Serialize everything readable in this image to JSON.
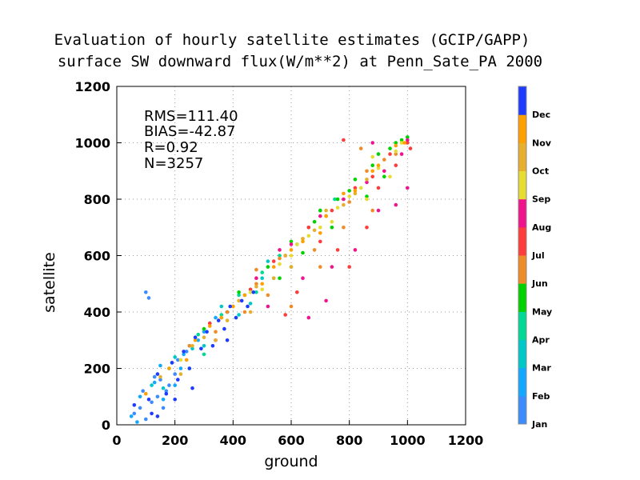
{
  "chart_data": {
    "type": "scatter",
    "title": "Evaluation of hourly satellite estimates (GCIP/GAPP)",
    "subtitle": "surface SW downward flux(W/m**2) at Penn_Sate_PA 2000",
    "xlabel": "ground",
    "ylabel": "satellite",
    "xlim": [
      0,
      1200
    ],
    "ylim": [
      0,
      1200
    ],
    "xticks": [
      "0",
      "200",
      "400",
      "600",
      "800",
      "1000",
      "1200"
    ],
    "yticks": [
      "0",
      "200",
      "400",
      "600",
      "800",
      "1000",
      "1200"
    ],
    "grid": true,
    "stats": [
      "RMS=111.40",
      "BIAS=-42.87",
      "R=0.92",
      "N=3257"
    ],
    "legend_placement": "right colorbar",
    "colorbar": [
      {
        "label": "Jan",
        "color": "#3a8cff"
      },
      {
        "label": "Feb",
        "color": "#12a8ff"
      },
      {
        "label": "Mar",
        "color": "#00c8c8"
      },
      {
        "label": "Apr",
        "color": "#00d896"
      },
      {
        "label": "May",
        "color": "#00d200"
      },
      {
        "label": "Jun",
        "color": "#f08c28"
      },
      {
        "label": "Jul",
        "color": "#ff3c3c"
      },
      {
        "label": "Aug",
        "color": "#f0148c"
      },
      {
        "label": "Sep",
        "color": "#e6dc32"
      },
      {
        "label": "Oct",
        "color": "#e6af2d"
      },
      {
        "label": "Nov",
        "color": "#ffa000"
      },
      {
        "label": "Dec",
        "color": "#1e3cff"
      }
    ],
    "series": [
      {
        "values": [
          [
            60,
            40
          ],
          [
            90,
            120
          ],
          [
            120,
            80
          ],
          [
            150,
            160
          ],
          [
            180,
            140
          ],
          [
            100,
            20
          ],
          [
            140,
            100
          ],
          [
            200,
            180
          ],
          [
            80,
            60
          ],
          [
            160,
            60
          ],
          [
            130,
            170
          ],
          [
            210,
            230
          ],
          [
            170,
            120
          ],
          [
            240,
            260
          ],
          [
            110,
            450
          ],
          [
            100,
            470
          ]
        ]
      },
      {
        "values": [
          [
            50,
            30
          ],
          [
            80,
            100
          ],
          [
            130,
            150
          ],
          [
            160,
            90
          ],
          [
            190,
            220
          ],
          [
            220,
            200
          ],
          [
            250,
            280
          ],
          [
            280,
            300
          ],
          [
            70,
            10
          ],
          [
            150,
            210
          ],
          [
            200,
            140
          ],
          [
            300,
            330
          ],
          [
            340,
            380
          ],
          [
            230,
            250
          ]
        ]
      },
      {
        "values": [
          [
            120,
            140
          ],
          [
            200,
            240
          ],
          [
            260,
            270
          ],
          [
            320,
            360
          ],
          [
            380,
            400
          ],
          [
            420,
            390
          ],
          [
            300,
            280
          ],
          [
            360,
            420
          ],
          [
            440,
            460
          ],
          [
            500,
            520
          ],
          [
            250,
            200
          ],
          [
            160,
            130
          ],
          [
            460,
            430
          ],
          [
            520,
            580
          ]
        ]
      },
      {
        "values": [
          [
            180,
            200
          ],
          [
            280,
            320
          ],
          [
            360,
            390
          ],
          [
            420,
            460
          ],
          [
            500,
            540
          ],
          [
            560,
            600
          ],
          [
            620,
            640
          ],
          [
            660,
            700
          ],
          [
            300,
            250
          ],
          [
            480,
            470
          ],
          [
            540,
            520
          ],
          [
            700,
            760
          ],
          [
            600,
            560
          ],
          [
            750,
            800
          ]
        ]
      },
      {
        "values": [
          [
            300,
            340
          ],
          [
            420,
            470
          ],
          [
            520,
            560
          ],
          [
            600,
            650
          ],
          [
            680,
            720
          ],
          [
            760,
            800
          ],
          [
            820,
            870
          ],
          [
            880,
            920
          ],
          [
            940,
            980
          ],
          [
            960,
            1000
          ],
          [
            1000,
            1020
          ],
          [
            980,
            1010
          ],
          [
            860,
            810
          ],
          [
            740,
            700
          ],
          [
            640,
            610
          ],
          [
            900,
            960
          ],
          [
            560,
            520
          ],
          [
            800,
            830
          ],
          [
            700,
            760
          ],
          [
            920,
            880
          ]
        ]
      },
      {
        "values": [
          [
            250,
            280
          ],
          [
            380,
            400
          ],
          [
            480,
            500
          ],
          [
            560,
            590
          ],
          [
            640,
            660
          ],
          [
            720,
            740
          ],
          [
            800,
            790
          ],
          [
            860,
            900
          ],
          [
            920,
            940
          ],
          [
            960,
            960
          ],
          [
            520,
            460
          ],
          [
            680,
            620
          ],
          [
            780,
            700
          ],
          [
            600,
            420
          ],
          [
            700,
            560
          ],
          [
            880,
            760
          ],
          [
            840,
            980
          ],
          [
            480,
            550
          ],
          [
            340,
            330
          ],
          [
            440,
            400
          ]
        ]
      },
      {
        "values": [
          [
            320,
            360
          ],
          [
            460,
            480
          ],
          [
            580,
            600
          ],
          [
            660,
            700
          ],
          [
            740,
            760
          ],
          [
            820,
            840
          ],
          [
            880,
            880
          ],
          [
            940,
            960
          ],
          [
            1000,
            1000
          ],
          [
            760,
            620
          ],
          [
            860,
            700
          ],
          [
            620,
            470
          ],
          [
            900,
            840
          ],
          [
            700,
            650
          ],
          [
            540,
            580
          ],
          [
            960,
            920
          ],
          [
            780,
            1010
          ],
          [
            580,
            390
          ],
          [
            800,
            560
          ],
          [
            1010,
            980
          ]
        ]
      },
      {
        "values": [
          [
            340,
            300
          ],
          [
            480,
            520
          ],
          [
            600,
            640
          ],
          [
            700,
            740
          ],
          [
            780,
            800
          ],
          [
            860,
            860
          ],
          [
            920,
            900
          ],
          [
            980,
            960
          ],
          [
            820,
            620
          ],
          [
            900,
            760
          ],
          [
            640,
            520
          ],
          [
            740,
            560
          ],
          [
            560,
            620
          ],
          [
            880,
            1000
          ],
          [
            1000,
            840
          ],
          [
            720,
            440
          ],
          [
            660,
            380
          ],
          [
            960,
            780
          ],
          [
            520,
            420
          ],
          [
            1000,
            1010
          ]
        ]
      },
      {
        "values": [
          [
            220,
            230
          ],
          [
            360,
            380
          ],
          [
            460,
            470
          ],
          [
            560,
            570
          ],
          [
            660,
            670
          ],
          [
            760,
            770
          ],
          [
            840,
            840
          ],
          [
            900,
            910
          ],
          [
            960,
            970
          ],
          [
            600,
            600
          ],
          [
            700,
            700
          ],
          [
            800,
            810
          ],
          [
            500,
            480
          ],
          [
            400,
            420
          ],
          [
            940,
            880
          ],
          [
            860,
            800
          ],
          [
            740,
            720
          ],
          [
            620,
            640
          ],
          [
            880,
            950
          ],
          [
            980,
            1000
          ]
        ]
      },
      {
        "values": [
          [
            150,
            170
          ],
          [
            260,
            280
          ],
          [
            380,
            370
          ],
          [
            480,
            490
          ],
          [
            580,
            600
          ],
          [
            680,
            690
          ],
          [
            780,
            780
          ],
          [
            860,
            870
          ],
          [
            420,
            440
          ],
          [
            540,
            520
          ],
          [
            640,
            660
          ],
          [
            300,
            310
          ],
          [
            340,
            300
          ],
          [
            720,
            760
          ],
          [
            820,
            820
          ],
          [
            220,
            180
          ],
          [
            460,
            400
          ],
          [
            600,
            560
          ]
        ]
      },
      {
        "values": [
          [
            100,
            110
          ],
          [
            180,
            200
          ],
          [
            270,
            300
          ],
          [
            360,
            380
          ],
          [
            440,
            460
          ],
          [
            540,
            560
          ],
          [
            640,
            650
          ],
          [
            720,
            740
          ],
          [
            820,
            830
          ],
          [
            900,
            920
          ],
          [
            960,
            990
          ],
          [
            240,
            230
          ],
          [
            320,
            350
          ],
          [
            400,
            420
          ],
          [
            500,
            500
          ],
          [
            600,
            620
          ],
          [
            700,
            680
          ],
          [
            780,
            820
          ],
          [
            880,
            900
          ],
          [
            990,
            1000
          ]
        ]
      },
      {
        "values": [
          [
            60,
            70
          ],
          [
            110,
            90
          ],
          [
            140,
            180
          ],
          [
            190,
            220
          ],
          [
            230,
            260
          ],
          [
            270,
            310
          ],
          [
            310,
            330
          ],
          [
            350,
            370
          ],
          [
            390,
            420
          ],
          [
            430,
            440
          ],
          [
            470,
            470
          ],
          [
            120,
            40
          ],
          [
            170,
            110
          ],
          [
            210,
            160
          ],
          [
            250,
            200
          ],
          [
            290,
            270
          ],
          [
            330,
            280
          ],
          [
            370,
            340
          ],
          [
            140,
            30
          ],
          [
            200,
            90
          ],
          [
            260,
            130
          ],
          [
            380,
            300
          ],
          [
            410,
            380
          ],
          [
            450,
            420
          ]
        ]
      }
    ]
  }
}
